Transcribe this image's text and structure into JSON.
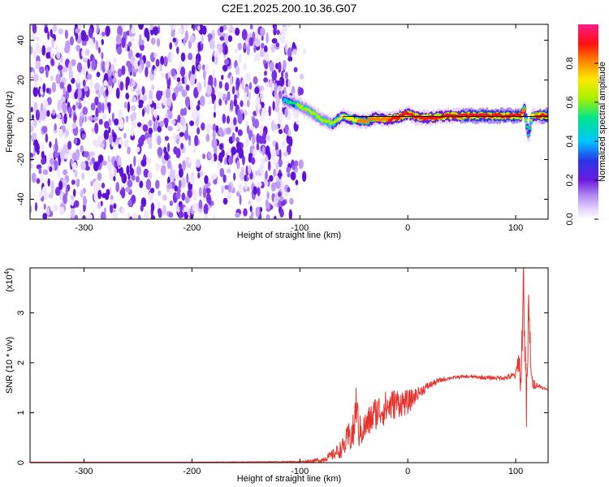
{
  "title": "C2E1.2025.200.10.36.G07",
  "colors": {
    "snr_line": "#e8322c",
    "noise_violet": "#6a1be0",
    "axis": "#000000"
  },
  "colormap": [
    "#ffffff",
    "#e6d4ff",
    "#b28cf5",
    "#6a1be0",
    "#2a35e8",
    "#00c6ff",
    "#00e58a",
    "#a8f000",
    "#ffe800",
    "#ff7a00",
    "#ff1010",
    "#ff1a8c"
  ],
  "colorbar": {
    "label": "Normalized spectral amplitude",
    "ticks": [
      "0.0",
      "0.2",
      "0.4",
      "0.6",
      "0.8"
    ],
    "tick_values": [
      0.0,
      0.2,
      0.4,
      0.6,
      0.8
    ],
    "range": [
      0,
      1
    ]
  },
  "chart_data": [
    {
      "type": "heatmap",
      "name": "spectrogram",
      "xlabel": "Height of straight line (km)",
      "ylabel": "Frequency (Hz)",
      "xlim": [
        -350,
        130
      ],
      "ylim": [
        -50,
        48
      ],
      "xticks": [
        -300,
        -200,
        -100,
        0,
        100
      ],
      "xtick_labels": [
        "-300",
        "-200",
        "-100",
        "0",
        "100"
      ],
      "yticks": [
        -40,
        -20,
        0,
        20,
        40
      ],
      "ytick_labels": [
        "-40",
        "-20",
        "0",
        "20",
        "40"
      ],
      "noise_region_x": [
        -350,
        -95
      ],
      "signal_trace": {
        "x": [
          -115,
          -110,
          -100,
          -90,
          -80,
          -70,
          -60,
          -50,
          -40,
          -30,
          -20,
          -10,
          0,
          10,
          20,
          40,
          60,
          80,
          100,
          105,
          108,
          110,
          112,
          115,
          120,
          130
        ],
        "freq": [
          10,
          9,
          7,
          4,
          0,
          -2,
          2,
          0,
          -1,
          1,
          0,
          1,
          3,
          1,
          1,
          2,
          2,
          2,
          2,
          2,
          6,
          -2,
          -8,
          2,
          2,
          2
        ],
        "amplitude": [
          0.45,
          0.55,
          0.6,
          0.6,
          0.62,
          0.65,
          0.7,
          0.75,
          0.8,
          0.85,
          0.85,
          0.9,
          0.9,
          0.9,
          0.9,
          0.9,
          0.92,
          0.95,
          0.95,
          0.9,
          0.8,
          0.6,
          0.4,
          0.7,
          0.9,
          0.95
        ]
      }
    },
    {
      "type": "line",
      "name": "snr",
      "xlabel": "Height of straight line (km)",
      "ylabel": "SNR (10 * v/v)",
      "scale_label": "(x10",
      "scale_exponent": "4",
      "scale_close": ")",
      "xlim": [
        -350,
        130
      ],
      "ylim": [
        0,
        3.9
      ],
      "xticks": [
        -300,
        -200,
        -100,
        0,
        100
      ],
      "xtick_labels": [
        "-300",
        "-200",
        "-100",
        "0",
        "100"
      ],
      "yticks": [
        0,
        1,
        2,
        3
      ],
      "ytick_labels": [
        "0",
        "1",
        "2",
        "3"
      ],
      "envelope": {
        "x": [
          -350,
          -200,
          -100,
          -80,
          -70,
          -60,
          -55,
          -50,
          -48,
          -45,
          -40,
          -30,
          -20,
          -10,
          0,
          10,
          20,
          30,
          40,
          50,
          60,
          70,
          80,
          90,
          95,
          100,
          103,
          105,
          107,
          110,
          112,
          115,
          120,
          125,
          130
        ],
        "y": [
          0.01,
          0.01,
          0.02,
          0.05,
          0.15,
          0.3,
          0.5,
          0.6,
          1.2,
          0.6,
          0.7,
          1.0,
          1.1,
          1.2,
          1.2,
          1.4,
          1.55,
          1.65,
          1.7,
          1.72,
          1.72,
          1.7,
          1.7,
          1.7,
          1.72,
          1.75,
          2.1,
          1.5,
          3.8,
          1.0,
          3.0,
          1.6,
          1.55,
          1.5,
          1.45
        ]
      },
      "noise_amplitude": [
        0.0,
        0.0,
        0.01,
        0.05,
        0.1,
        0.2,
        0.3,
        0.4,
        0.4,
        0.35,
        0.3,
        0.35,
        0.35,
        0.3,
        0.25,
        0.12,
        0.08,
        0.05,
        0.03,
        0.03,
        0.03,
        0.04,
        0.04,
        0.05,
        0.06,
        0.1,
        0.25,
        0.4,
        0.6,
        0.6,
        0.6,
        0.15,
        0.05,
        0.03,
        0.02
      ]
    }
  ]
}
